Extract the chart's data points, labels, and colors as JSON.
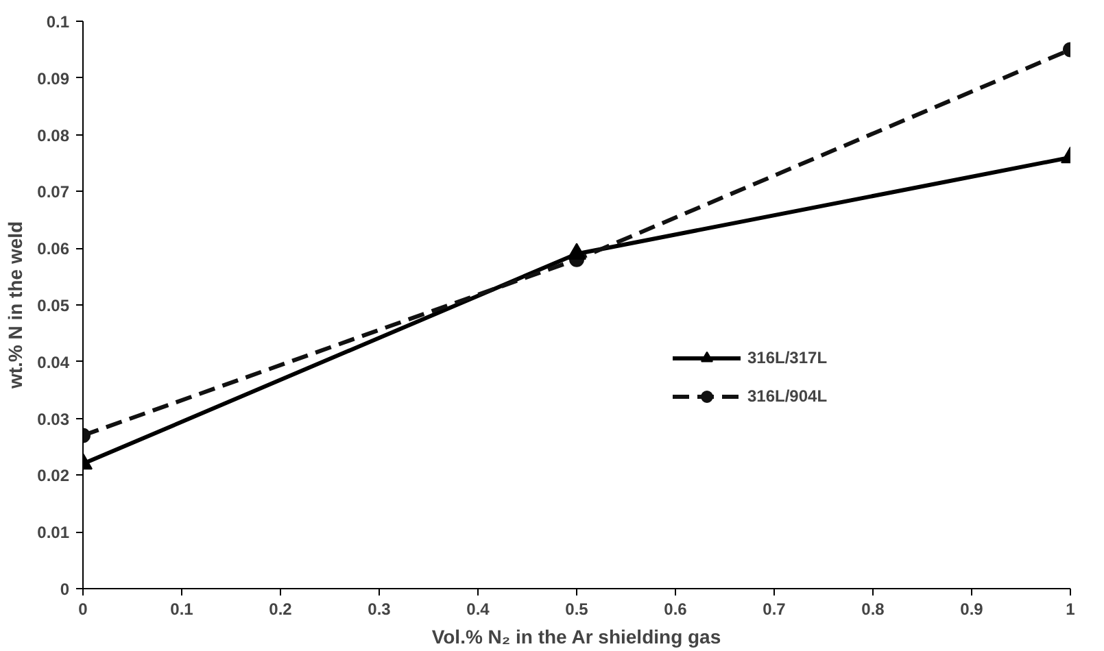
{
  "chart_data": {
    "type": "line",
    "xlabel": "Vol.% N₂ in the Ar shielding gas",
    "ylabel": "wt.% N in the weld",
    "x": [
      0,
      0.5,
      1
    ],
    "series": [
      {
        "name": "316L/317L",
        "color": "#000000",
        "values": [
          0.022,
          0.059,
          0.076
        ],
        "marker": "triangle",
        "line_style": "solid"
      },
      {
        "name": "316L/904L",
        "color": "#111111",
        "values": [
          0.027,
          0.058,
          0.095
        ],
        "marker": "circle",
        "line_style": "dashed"
      }
    ],
    "xlim": [
      0,
      1
    ],
    "ylim": [
      0,
      0.1
    ],
    "xticks": [
      0,
      0.1,
      0.2,
      0.3,
      0.4,
      0.5,
      0.6,
      0.7,
      0.8,
      0.9,
      1
    ],
    "yticks": [
      0,
      0.01,
      0.02,
      0.03,
      0.04,
      0.05,
      0.06,
      0.07,
      0.08,
      0.09,
      0.1
    ],
    "grid": false,
    "legend": "right"
  }
}
